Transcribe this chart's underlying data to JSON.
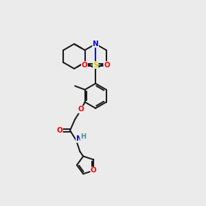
{
  "background_color": "#ebebeb",
  "bond_color": "#1a1a1a",
  "atom_colors": {
    "N": "#0000ff",
    "O": "#ff0000",
    "S": "#cccc00",
    "H": "#4a9090",
    "C": "#1a1a1a"
  },
  "figsize": [
    3.0,
    3.0
  ],
  "dpi": 100,
  "lw": 1.5,
  "font_size": 7.5
}
